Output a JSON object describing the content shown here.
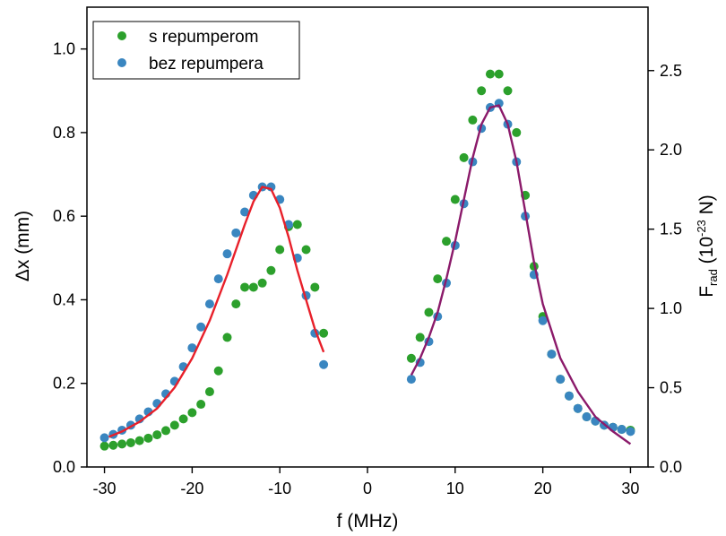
{
  "chart_data": {
    "type": "scatter",
    "xlabel": "f (MHz)",
    "ylabel": "Δx (mm)",
    "y2label": {
      "main": "F",
      "sub": "rad",
      "rest1": " (10",
      "sup": "-23",
      "rest2": " N)"
    },
    "xlim": [
      -32,
      32
    ],
    "ylim": [
      0,
      1.1
    ],
    "y2lim": [
      0,
      2.9
    ],
    "xticks": [
      -30,
      -20,
      -10,
      0,
      10,
      20,
      30
    ],
    "xtick_labels": [
      "-30",
      "-20",
      "-10",
      "0",
      "10",
      "20",
      "30"
    ],
    "yticks": [
      0,
      0.2,
      0.4,
      0.6,
      0.8,
      1.0
    ],
    "ytick_labels": [
      "0.0",
      "0.2",
      "0.4",
      "0.6",
      "0.8",
      "1.0"
    ],
    "y2ticks": [
      0,
      0.5,
      1.0,
      1.5,
      2.0,
      2.5
    ],
    "y2tick_labels": [
      "0.0",
      "0.5",
      "1.0",
      "1.5",
      "2.0",
      "2.5"
    ],
    "grid": false,
    "legend_position": "top-left",
    "series": [
      {
        "name": "s repumperom",
        "kind": "points",
        "color": "#2ca02c",
        "x": [
          -30,
          -29,
          -28,
          -27,
          -26,
          -25,
          -24,
          -23,
          -22,
          -21,
          -20,
          -19,
          -18,
          -17,
          -16,
          -15,
          -14,
          -13,
          -12,
          -11,
          -10,
          -9,
          -8,
          -7,
          -6,
          -5,
          5,
          6,
          7,
          8,
          9,
          10,
          11,
          12,
          13,
          14,
          15,
          16,
          17,
          18,
          19,
          20,
          21,
          22,
          23,
          24,
          25,
          26,
          27,
          28,
          29,
          30
        ],
        "y": [
          0.05,
          0.052,
          0.055,
          0.058,
          0.063,
          0.069,
          0.077,
          0.087,
          0.1,
          0.115,
          0.13,
          0.15,
          0.18,
          0.23,
          0.31,
          0.39,
          0.43,
          0.43,
          0.44,
          0.47,
          0.52,
          0.575,
          0.58,
          0.52,
          0.43,
          0.32,
          0.26,
          0.31,
          0.37,
          0.45,
          0.54,
          0.64,
          0.74,
          0.83,
          0.9,
          0.94,
          0.94,
          0.9,
          0.8,
          0.65,
          0.48,
          0.36,
          0.27,
          0.21,
          0.17,
          0.14,
          0.12,
          0.11,
          0.1,
          0.095,
          0.09,
          0.088
        ]
      },
      {
        "name": "bez repumpera",
        "kind": "points",
        "color": "#3a86c0",
        "x": [
          -30,
          -29,
          -28,
          -27,
          -26,
          -25,
          -24,
          -23,
          -22,
          -21,
          -20,
          -19,
          -18,
          -17,
          -16,
          -15,
          -14,
          -13,
          -12,
          -11,
          -10,
          -9,
          -8,
          -7,
          -6,
          -5,
          5,
          6,
          7,
          8,
          9,
          10,
          11,
          12,
          13,
          14,
          15,
          16,
          17,
          18,
          19,
          20,
          21,
          22,
          23,
          24,
          25,
          26,
          27,
          28,
          29,
          30
        ],
        "y": [
          0.07,
          0.078,
          0.088,
          0.1,
          0.115,
          0.132,
          0.152,
          0.175,
          0.205,
          0.24,
          0.285,
          0.335,
          0.39,
          0.45,
          0.51,
          0.56,
          0.61,
          0.65,
          0.67,
          0.67,
          0.64,
          0.58,
          0.5,
          0.41,
          0.32,
          0.245,
          0.21,
          0.25,
          0.3,
          0.36,
          0.44,
          0.53,
          0.63,
          0.73,
          0.81,
          0.86,
          0.87,
          0.82,
          0.73,
          0.6,
          0.46,
          0.35,
          0.27,
          0.21,
          0.17,
          0.14,
          0.12,
          0.11,
          0.1,
          0.095,
          0.09,
          0.085
        ]
      },
      {
        "name": "",
        "kind": "fit-line",
        "color": "#e8202a",
        "x": [
          -29.5,
          -28,
          -26,
          -24,
          -22,
          -20,
          -18,
          -16,
          -14,
          -13,
          -12,
          -11,
          -10,
          -9,
          -8,
          -7,
          -6,
          -5
        ],
        "y": [
          0.072,
          0.085,
          0.108,
          0.14,
          0.19,
          0.26,
          0.35,
          0.46,
          0.58,
          0.635,
          0.67,
          0.665,
          0.62,
          0.55,
          0.47,
          0.4,
          0.33,
          0.275
        ]
      },
      {
        "name": "",
        "kind": "fit-line",
        "color": "#8b1a6a",
        "x": [
          5,
          6,
          7,
          8,
          9,
          10,
          11,
          12,
          13,
          14,
          15,
          16,
          17,
          18,
          19,
          20,
          22,
          24,
          26,
          28,
          30
        ],
        "y": [
          0.22,
          0.26,
          0.31,
          0.37,
          0.45,
          0.54,
          0.64,
          0.74,
          0.82,
          0.86,
          0.865,
          0.82,
          0.73,
          0.61,
          0.49,
          0.39,
          0.26,
          0.18,
          0.12,
          0.085,
          0.055
        ]
      }
    ]
  }
}
